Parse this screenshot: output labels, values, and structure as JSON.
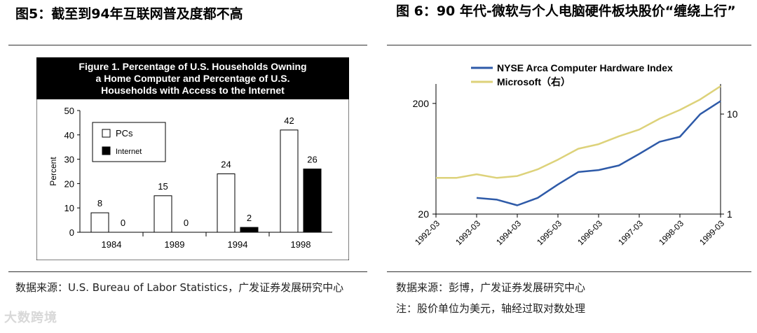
{
  "left_panel": {
    "title": "图5：截至到94年互联网普及度都不高",
    "source": "数据来源：U.S. Bureau of Labor Statistics，广发证券发展研究中心"
  },
  "right_panel": {
    "title": "图 6：90 年代-微软与个人电脑硬件板块股价“缠绕上行”",
    "source": "数据来源：彭博，广发证券发展研究中心",
    "note": "注：股价单位为美元，轴经过取对数处理"
  },
  "watermark": "大数跨境",
  "chart_data": [
    {
      "type": "bar",
      "title_lines": [
        "Figure 1. Percentage of U.S. Households Owning",
        "a Home Computer and Percentage of U.S.",
        "Households with Access to the Internet"
      ],
      "categories": [
        "1984",
        "1989",
        "1994",
        "1998"
      ],
      "series": [
        {
          "name": "PCs",
          "values": [
            8,
            15,
            24,
            42
          ],
          "color": "#ffffff"
        },
        {
          "name": "Internet",
          "values": [
            0,
            0,
            2,
            26
          ],
          "color": "#000000"
        }
      ],
      "ylabel": "Percent",
      "ylim": [
        0,
        50
      ],
      "yticks": [
        "0",
        "10",
        "20",
        "30",
        "40",
        "50"
      ],
      "legend": "top-left"
    },
    {
      "type": "line",
      "series": [
        {
          "name": "NYSE Arca Computer Hardware Index",
          "color": "#2e5aa8",
          "axis": "left",
          "x": [
            "1992-03",
            "1992-09",
            "1993-03",
            "1993-09",
            "1994-03",
            "1994-09",
            "1995-03",
            "1995-09",
            "1996-03",
            "1996-09",
            "1997-03",
            "1997-09",
            "1998-03",
            "1998-09",
            "1999-03"
          ],
          "values": [
            null,
            null,
            28,
            27,
            24,
            28,
            37,
            48,
            50,
            55,
            70,
            90,
            100,
            160,
            210
          ]
        },
        {
          "name": "Microsoft（右）",
          "color": "#ddd27a",
          "axis": "right",
          "x": [
            "1992-03",
            "1992-09",
            "1993-03",
            "1993-09",
            "1994-03",
            "1994-09",
            "1995-03",
            "1995-09",
            "1996-03",
            "1996-09",
            "1997-03",
            "1997-09",
            "1998-03",
            "1998-09",
            "1999-03"
          ],
          "values": [
            2.3,
            2.3,
            2.5,
            2.3,
            2.4,
            2.8,
            3.5,
            4.5,
            5,
            6,
            7,
            9,
            11,
            14,
            19
          ]
        }
      ],
      "left_axis": {
        "ticks": [
          "20",
          "200"
        ],
        "range": [
          20,
          300
        ],
        "scale": "log"
      },
      "right_axis": {
        "ticks": [
          "1",
          "10"
        ],
        "range": [
          1,
          20
        ],
        "scale": "log"
      },
      "x_ticks": [
        "1992-03",
        "1993-03",
        "1994-03",
        "1995-03",
        "1996-03",
        "1997-03",
        "1998-03",
        "1999-03"
      ],
      "legend": "top-left"
    }
  ]
}
